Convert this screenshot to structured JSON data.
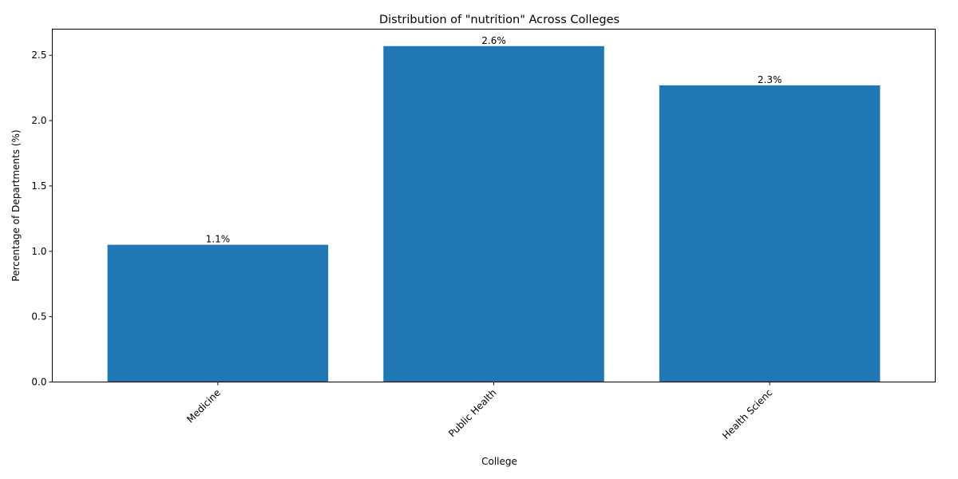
{
  "chart_data": {
    "type": "bar",
    "title": "Distribution of \"nutrition\" Across Colleges",
    "xlabel": "College",
    "ylabel": "Percentage of Departments (%)",
    "categories": [
      "Medicine",
      "Public Health",
      "Health Scienc"
    ],
    "values": [
      1.05,
      2.57,
      2.27
    ],
    "value_labels": [
      "1.1%",
      "2.6%",
      "2.3%"
    ],
    "ylim": [
      0,
      2.7
    ],
    "yticks": [
      0.0,
      0.5,
      1.0,
      1.5,
      2.0,
      2.5
    ],
    "ytick_labels": [
      "0.0",
      "0.5",
      "1.0",
      "1.5",
      "2.0",
      "2.5"
    ],
    "bar_color": "#1f77b4",
    "grid": false,
    "xtick_rotation_deg": 45
  }
}
